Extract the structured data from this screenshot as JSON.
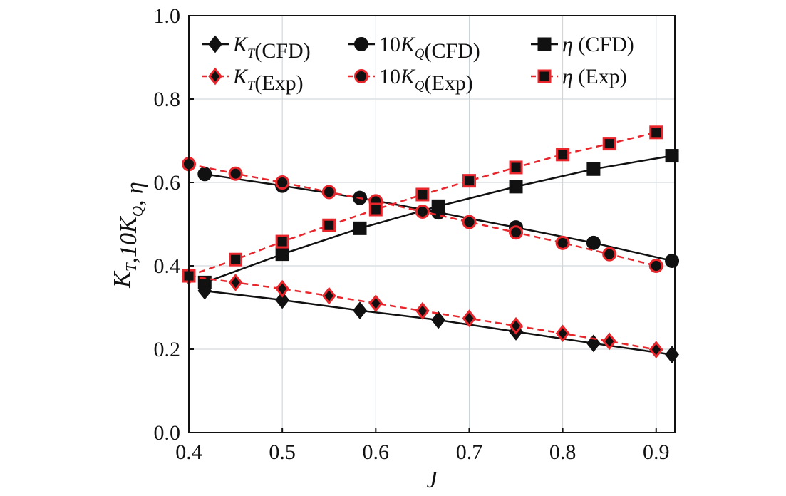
{
  "chart_data": {
    "type": "line",
    "xlabel": "J",
    "ylabel": "K_T,10K_Q, η",
    "xlim": [
      0.4,
      0.92
    ],
    "ylim": [
      0.0,
      1.0
    ],
    "xticks": [
      "0.4",
      "0.5",
      "0.6",
      "0.7",
      "0.8",
      "0.9"
    ],
    "yticks": [
      "0.0",
      "0.2",
      "0.4",
      "0.6",
      "0.8",
      "1.0"
    ],
    "grid": true,
    "legend_position": "top",
    "series": [
      {
        "name": "K_T(CFD)",
        "color": "#111111",
        "marker": "diamond",
        "line": "solid",
        "x": [
          0.417,
          0.5,
          0.583,
          0.667,
          0.75,
          0.833,
          0.917
        ],
        "y": [
          0.34,
          0.318,
          0.293,
          0.27,
          0.242,
          0.214,
          0.187
        ]
      },
      {
        "name": "10K_Q(CFD)",
        "color": "#111111",
        "marker": "circle",
        "line": "solid",
        "x": [
          0.417,
          0.5,
          0.583,
          0.667,
          0.75,
          0.833,
          0.917
        ],
        "y": [
          0.62,
          0.592,
          0.563,
          0.528,
          0.492,
          0.455,
          0.412
        ]
      },
      {
        "name": "η (CFD)",
        "color": "#111111",
        "marker": "square",
        "line": "solid",
        "x": [
          0.417,
          0.5,
          0.583,
          0.667,
          0.75,
          0.833,
          0.917
        ],
        "y": [
          0.36,
          0.428,
          0.49,
          0.543,
          0.59,
          0.632,
          0.664
        ]
      },
      {
        "name": "K_T(Exp)",
        "color": "#e8262c",
        "marker": "diamond",
        "line": "dashed",
        "x": [
          0.4,
          0.45,
          0.5,
          0.55,
          0.6,
          0.65,
          0.7,
          0.75,
          0.8,
          0.85,
          0.9
        ],
        "y": [
          0.375,
          0.36,
          0.345,
          0.328,
          0.31,
          0.292,
          0.274,
          0.256,
          0.238,
          0.219,
          0.199
        ]
      },
      {
        "name": "10K_Q(Exp)",
        "color": "#e8262c",
        "marker": "circle",
        "line": "dashed",
        "x": [
          0.4,
          0.45,
          0.5,
          0.55,
          0.6,
          0.65,
          0.7,
          0.75,
          0.8,
          0.85,
          0.9
        ],
        "y": [
          0.644,
          0.621,
          0.6,
          0.577,
          0.555,
          0.53,
          0.505,
          0.48,
          0.455,
          0.428,
          0.4
        ]
      },
      {
        "name": "η (Exp)",
        "color": "#e8262c",
        "marker": "square",
        "line": "dashed",
        "x": [
          0.4,
          0.45,
          0.5,
          0.55,
          0.6,
          0.65,
          0.7,
          0.75,
          0.8,
          0.85,
          0.9
        ],
        "y": [
          0.376,
          0.415,
          0.458,
          0.497,
          0.535,
          0.571,
          0.604,
          0.636,
          0.667,
          0.693,
          0.72
        ]
      }
    ]
  }
}
